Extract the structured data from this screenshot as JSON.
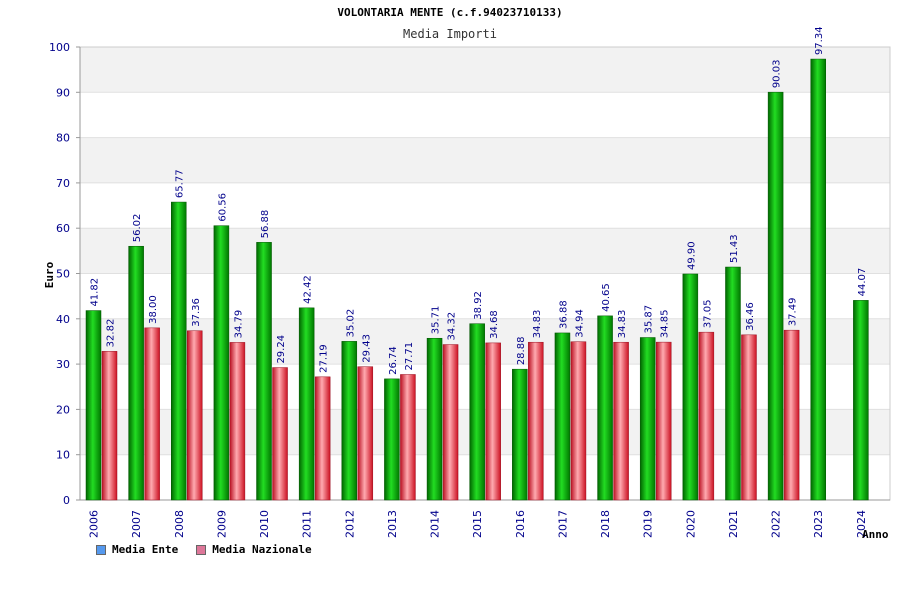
{
  "chart_data": {
    "type": "bar",
    "title": "VOLONTARIA MENTE (c.f.94023710133)",
    "subtitle": "Media Importi",
    "ylabel": "Euro",
    "xlabel": "Anno",
    "ylim": [
      0,
      100
    ],
    "yticks": [
      "0",
      "10",
      "20",
      "30",
      "40",
      "50",
      "60",
      "70",
      "80",
      "90",
      "100"
    ],
    "categories": [
      "2006",
      "2007",
      "2008",
      "2009",
      "2010",
      "2011",
      "2012",
      "2013",
      "2014",
      "2015",
      "2016",
      "2017",
      "2018",
      "2019",
      "2020",
      "2021",
      "2022",
      "2023",
      "2024"
    ],
    "series": [
      {
        "name": "Media Ente",
        "color": "#00aa00",
        "values": [
          41.82,
          56.02,
          65.77,
          60.56,
          56.88,
          42.42,
          35.02,
          26.74,
          35.71,
          38.92,
          28.88,
          36.88,
          40.65,
          35.87,
          49.9,
          51.43,
          90.03,
          97.34,
          44.07
        ],
        "labels": [
          "41.82",
          "56.02",
          "65.77",
          "60.56",
          "56.88",
          "42.42",
          "35.02",
          "26.74",
          "35.71",
          "38.92",
          "28.88",
          "36.88",
          "40.65",
          "35.87",
          "49.90",
          "51.43",
          "90.03",
          "97.34",
          "44.07"
        ]
      },
      {
        "name": "Media Nazionale",
        "color": "#dd2233",
        "values": [
          32.82,
          38.0,
          37.36,
          34.79,
          29.24,
          27.19,
          29.43,
          27.71,
          34.32,
          34.68,
          34.83,
          34.94,
          34.83,
          34.85,
          37.05,
          36.46,
          37.49,
          null,
          null
        ],
        "labels": [
          "32.82",
          "38.00",
          "37.36",
          "34.79",
          "29.24",
          "27.19",
          "29.43",
          "27.71",
          "34.32",
          "34.68",
          "34.83",
          "34.94",
          "34.83",
          "34.85",
          "37.05",
          "36.46",
          "37.49",
          null,
          null
        ]
      }
    ],
    "legend": [
      {
        "label": "Media Ente",
        "color": "#5599ee"
      },
      {
        "label": "Media Nazionale",
        "color": "#dd7799"
      }
    ],
    "grid": true
  }
}
